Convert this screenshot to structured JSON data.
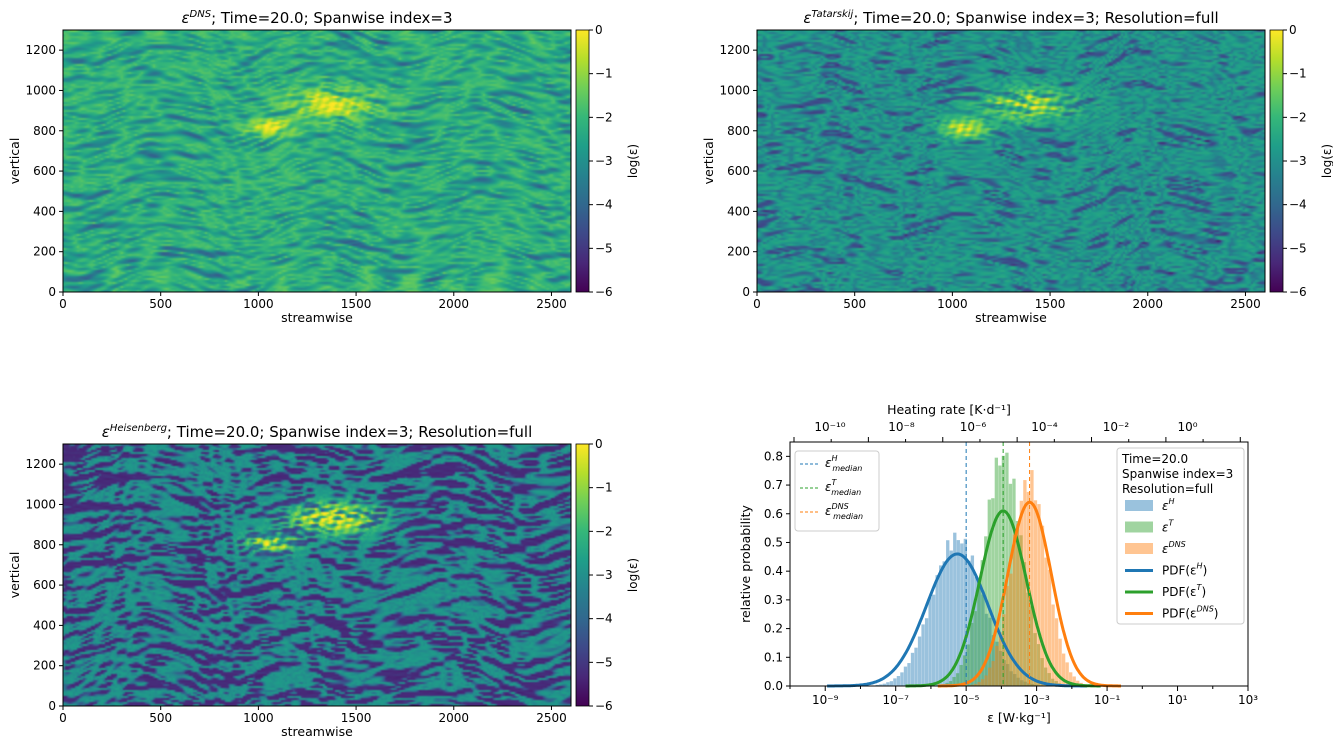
{
  "colors": {
    "viridis": [
      "#440154",
      "#482878",
      "#3e4989",
      "#31688e",
      "#26828e",
      "#1f9e89",
      "#35b779",
      "#6ece58",
      "#b5de2b",
      "#fde725"
    ],
    "H": "#1f77b4",
    "T": "#2ca02c",
    "DNS": "#ff7f0e"
  },
  "panels": [
    {
      "title": "; Time=20.0; Spanwise index=3",
      "eps_base": "ε",
      "eps_sup": "DNS",
      "xlabel": "streamwise",
      "ylabel": "vertical",
      "xticks": [
        "0",
        "500",
        "1000",
        "1500",
        "2000",
        "2500"
      ],
      "yticks": [
        "0",
        "200",
        "400",
        "600",
        "800",
        "1000",
        "1200"
      ],
      "cbar_label": "log(ε)",
      "cbar_ticks": [
        "0",
        "−1",
        "−2",
        "−3",
        "−4",
        "−5",
        "−6"
      ],
      "field": "DNS"
    },
    {
      "title": "; Time=20.0; Spanwise index=3; Resolution=full",
      "eps_base": "ε",
      "eps_sup": "Tatarskij",
      "xlabel": "streamwise",
      "ylabel": "vertical",
      "xticks": [
        "0",
        "500",
        "1000",
        "1500",
        "2000",
        "2500"
      ],
      "yticks": [
        "0",
        "200",
        "400",
        "600",
        "800",
        "1000",
        "1200"
      ],
      "cbar_label": "log(ε)",
      "cbar_ticks": [
        "0",
        "−1",
        "−2",
        "−3",
        "−4",
        "−5",
        "−6"
      ],
      "field": "Tatarskij"
    },
    {
      "title": "; Time=20.0; Spanwise index=3; Resolution=full",
      "eps_base": "ε",
      "eps_sup": "Heisenberg",
      "xlabel": "streamwise",
      "ylabel": "vertical",
      "xticks": [
        "0",
        "500",
        "1000",
        "1500",
        "2000",
        "2500"
      ],
      "yticks": [
        "0",
        "200",
        "400",
        "600",
        "800",
        "1000",
        "1200"
      ],
      "cbar_label": "log(ε)",
      "cbar_ticks": [
        "0",
        "−1",
        "−2",
        "−3",
        "−4",
        "−5",
        "−6"
      ],
      "field": "Heisenberg"
    }
  ],
  "chart_data": [
    {
      "type": "heatmap",
      "title": "ε^DNS; Time=20.0; Spanwise index=3",
      "xlabel": "streamwise",
      "ylabel": "vertical",
      "xlim": [
        0,
        2600
      ],
      "ylim": [
        0,
        1300
      ],
      "colorbar": {
        "label": "log(ε)",
        "range": [
          -6,
          0
        ]
      }
    },
    {
      "type": "heatmap",
      "title": "ε^Tatarskij; Time=20.0; Spanwise index=3; Resolution=full",
      "xlabel": "streamwise",
      "ylabel": "vertical",
      "xlim": [
        0,
        2600
      ],
      "ylim": [
        0,
        1300
      ],
      "colorbar": {
        "label": "log(ε)",
        "range": [
          -6,
          0
        ]
      }
    },
    {
      "type": "heatmap",
      "title": "ε^Heisenberg; Time=20.0; Spanwise index=3; Resolution=full",
      "xlabel": "streamwise",
      "ylabel": "vertical",
      "xlim": [
        0,
        2600
      ],
      "ylim": [
        0,
        1300
      ],
      "colorbar": {
        "label": "log(ε)",
        "range": [
          -6,
          0
        ]
      }
    },
    {
      "type": "bar",
      "xscale": "log",
      "xlabel": "ε [W·kg⁻¹]",
      "ylabel": "relative probability",
      "top_xlabel": "Heating rate [K·d⁻¹]",
      "xlim_log10": [
        -10,
        3
      ],
      "ylim": [
        0,
        0.85
      ],
      "xticks": [
        "10⁻⁹",
        "10⁻⁷",
        "10⁻⁵",
        "10⁻³",
        "10⁻¹",
        "10¹",
        "10³"
      ],
      "yticks": [
        "0.0",
        "0.1",
        "0.2",
        "0.3",
        "0.4",
        "0.5",
        "0.6",
        "0.7",
        "0.8"
      ],
      "top_xticks": [
        "10⁻¹⁰",
        "10⁻⁸",
        "10⁻⁶",
        "10⁻⁴",
        "10⁻²",
        "10⁰"
      ],
      "info_lines": [
        "Time=20.0",
        "Spanwise index=3",
        "Resolution=full"
      ],
      "series": [
        {
          "name": "ε^H",
          "key": "H",
          "median_log10": -5.0,
          "pdf": {
            "mu": -5.25,
            "sigma": 0.88,
            "peak": 0.46
          }
        },
        {
          "name": "ε^T",
          "key": "T",
          "median_log10": -3.95,
          "pdf": {
            "mu": -3.95,
            "sigma": 0.66,
            "peak": 0.61
          }
        },
        {
          "name": "ε^DNS",
          "key": "DNS",
          "median_log10": -3.2,
          "pdf": {
            "mu": -3.2,
            "sigma": 0.62,
            "peak": 0.64
          }
        }
      ],
      "legend_left": [
        {
          "base": "ε",
          "sup": "H",
          "sub": "median",
          "key": "H"
        },
        {
          "base": "ε",
          "sup": "T",
          "sub": "median",
          "key": "T"
        },
        {
          "base": "ε",
          "sup": "DNS",
          "sub": "median",
          "key": "DNS"
        }
      ],
      "legend_right": [
        {
          "kind": "patch",
          "base": "ε",
          "sup": "H",
          "key": "H"
        },
        {
          "kind": "patch",
          "base": "ε",
          "sup": "T",
          "key": "T"
        },
        {
          "kind": "patch",
          "base": "ε",
          "sup": "DNS",
          "key": "DNS"
        },
        {
          "kind": "line",
          "pre": "PDF(ε",
          "sup": "H",
          "post": ")",
          "key": "H"
        },
        {
          "kind": "line",
          "pre": "PDF(ε",
          "sup": "T",
          "post": ")",
          "key": "T"
        },
        {
          "kind": "line",
          "pre": "PDF(ε",
          "sup": "DNS",
          "post": ")",
          "key": "DNS"
        }
      ]
    }
  ]
}
